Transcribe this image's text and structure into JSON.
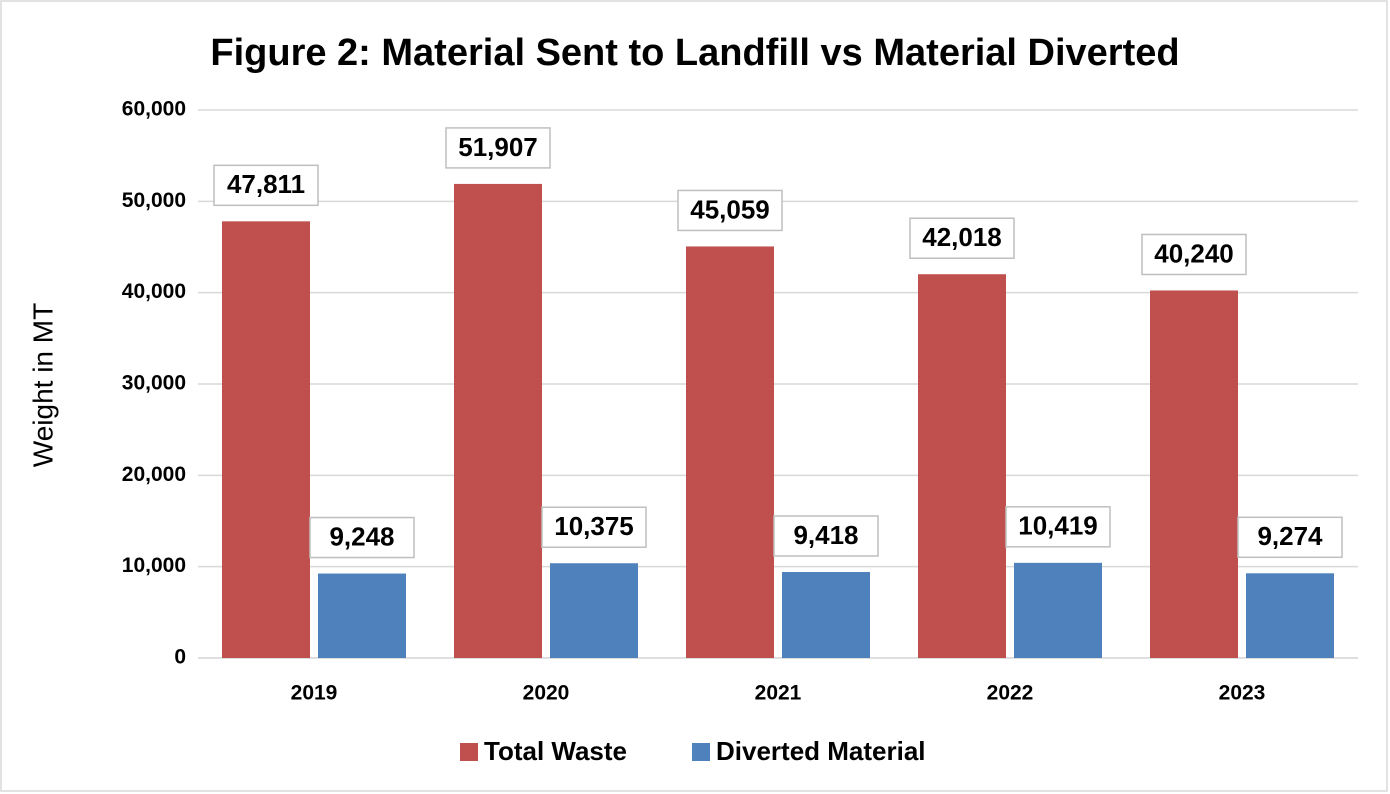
{
  "chart_data": {
    "type": "bar",
    "title": "Figure 2: Material Sent to Landfill vs Material Diverted",
    "y_label": "Weight in MT",
    "categories": [
      "2019",
      "2020",
      "2021",
      "2022",
      "2023"
    ],
    "series": [
      {
        "name": "Total Waste",
        "color": "#c0504d",
        "values": [
          47811,
          51907,
          45059,
          42018,
          40240
        ],
        "value_labels": [
          "47,811",
          "51,907",
          "45,059",
          "42,018",
          "40,240"
        ]
      },
      {
        "name": "Diverted Material",
        "color": "#4f81bd",
        "values": [
          9248,
          10375,
          9418,
          10419,
          9274
        ],
        "value_labels": [
          "9,248",
          "10,375",
          "9,418",
          "10,419",
          "9,274"
        ]
      }
    ],
    "ylim": [
      0,
      60000
    ],
    "yticks": [
      0,
      {
        "value": 10000,
        "label": "10,000"
      },
      {
        "value": 20000,
        "label": "20,000"
      },
      {
        "value": 30000,
        "label": "30,000"
      },
      {
        "value": 40000,
        "label": "40,000"
      },
      {
        "value": 50000,
        "label": "50,000"
      },
      {
        "value": 60000,
        "label": "60,000"
      }
    ],
    "grid": true,
    "legend": "bottom"
  }
}
